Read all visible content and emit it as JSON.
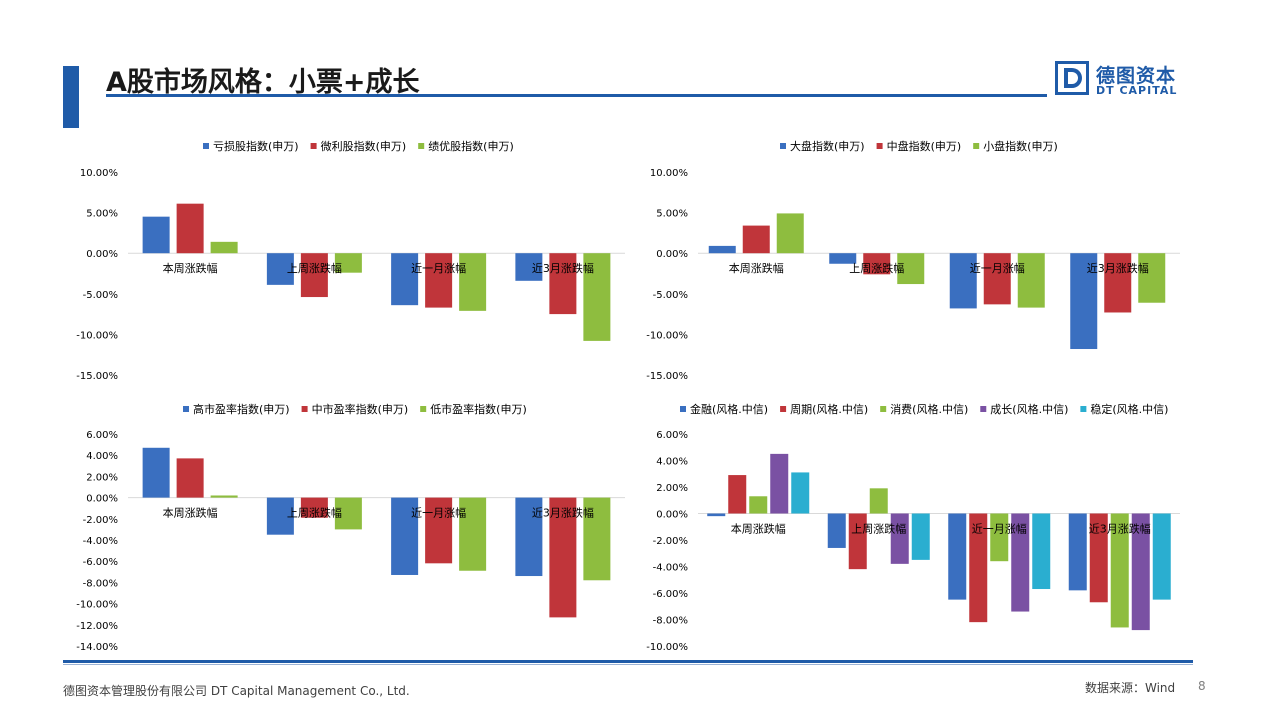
{
  "page": {
    "title": "A股市场风格：小票+成长",
    "logo_cn": "德图资本",
    "logo_en": "DT CAPITAL",
    "logo_letter": "D",
    "footer_company": "德图资本管理股份有限公司  DT Capital  Management  Co., Ltd.",
    "footer_source": "数据来源：Wind",
    "page_number": "8"
  },
  "colors": {
    "blue": "#3a6fc0",
    "red": "#c0353a",
    "green": "#8ebd3f",
    "purple": "#7a51a3",
    "cyan": "#2aaed0",
    "brand": "#1f5ba8"
  },
  "chart_data": [
    {
      "type": "bar",
      "categories": [
        "本周涨跌幅",
        "上周涨跌幅",
        "近一月涨幅",
        "近3月涨跌幅"
      ],
      "series": [
        {
          "name": "亏损股指数(申万)",
          "color": "#3a6fc0",
          "values": [
            4.5,
            -3.9,
            -6.4,
            -3.4
          ]
        },
        {
          "name": "微利股指数(申万)",
          "color": "#c0353a",
          "values": [
            6.1,
            -5.4,
            -6.7,
            -7.5
          ]
        },
        {
          "name": "绩优股指数(申万)",
          "color": "#8ebd3f",
          "values": [
            1.4,
            -2.4,
            -7.1,
            -10.8
          ]
        }
      ],
      "ylim": [
        -15,
        10
      ],
      "yticks": [
        "10.00%",
        "5.00%",
        "0.00%",
        "-5.00%",
        "-10.00%",
        "-15.00%"
      ],
      "legend": "top"
    },
    {
      "type": "bar",
      "categories": [
        "本周涨跌幅",
        "上周涨跌幅",
        "近一月涨幅",
        "近3月涨跌幅"
      ],
      "series": [
        {
          "name": "大盘指数(申万)",
          "color": "#3a6fc0",
          "values": [
            0.9,
            -1.3,
            -6.8,
            -11.8
          ]
        },
        {
          "name": "中盘指数(申万)",
          "color": "#c0353a",
          "values": [
            3.4,
            -2.6,
            -6.3,
            -7.3
          ]
        },
        {
          "name": "小盘指数(申万)",
          "color": "#8ebd3f",
          "values": [
            4.9,
            -3.8,
            -6.7,
            -6.1
          ]
        }
      ],
      "ylim": [
        -15,
        10
      ],
      "yticks": [
        "10.00%",
        "5.00%",
        "0.00%",
        "-5.00%",
        "-10.00%",
        "-15.00%"
      ],
      "legend": "top"
    },
    {
      "type": "bar",
      "categories": [
        "本周涨跌幅",
        "上周涨跌幅",
        "近一月涨幅",
        "近3月涨跌幅"
      ],
      "series": [
        {
          "name": "高市盈率指数(申万)",
          "color": "#3a6fc0",
          "values": [
            4.7,
            -3.5,
            -7.3,
            -7.4
          ]
        },
        {
          "name": "中市盈率指数(申万)",
          "color": "#c0353a",
          "values": [
            3.7,
            -1.9,
            -6.2,
            -11.3
          ]
        },
        {
          "name": "低市盈率指数(申万)",
          "color": "#8ebd3f",
          "values": [
            0.2,
            -3.0,
            -6.9,
            -7.8
          ]
        }
      ],
      "ylim": [
        -14,
        6
      ],
      "yticks": [
        "6.00%",
        "4.00%",
        "2.00%",
        "0.00%",
        "-2.00%",
        "-4.00%",
        "-6.00%",
        "-8.00%",
        "-10.00%",
        "-12.00%",
        "-14.00%"
      ],
      "legend": "top"
    },
    {
      "type": "bar",
      "categories": [
        "本周涨跌幅",
        "上周涨跌幅",
        "近一月涨幅",
        "近3月涨跌幅"
      ],
      "series": [
        {
          "name": "金融(风格.中信)",
          "color": "#3a6fc0",
          "values": [
            -0.2,
            -2.6,
            -6.5,
            -5.8
          ]
        },
        {
          "name": "周期(风格.中信)",
          "color": "#c0353a",
          "values": [
            2.9,
            -4.2,
            -8.2,
            -6.7
          ]
        },
        {
          "name": "消费(风格.中信)",
          "color": "#8ebd3f",
          "values": [
            1.3,
            1.9,
            -3.6,
            -8.6
          ]
        },
        {
          "name": "成长(风格.中信)",
          "color": "#7a51a3",
          "values": [
            4.5,
            -3.8,
            -7.4,
            -8.8
          ]
        },
        {
          "name": "稳定(风格.中信)",
          "color": "#2aaed0",
          "values": [
            3.1,
            -3.5,
            -5.7,
            -6.5
          ]
        }
      ],
      "ylim": [
        -10,
        6
      ],
      "yticks": [
        "6.00%",
        "4.00%",
        "2.00%",
        "0.00%",
        "-2.00%",
        "-4.00%",
        "-6.00%",
        "-8.00%",
        "-10.00%"
      ],
      "legend": "top"
    }
  ]
}
